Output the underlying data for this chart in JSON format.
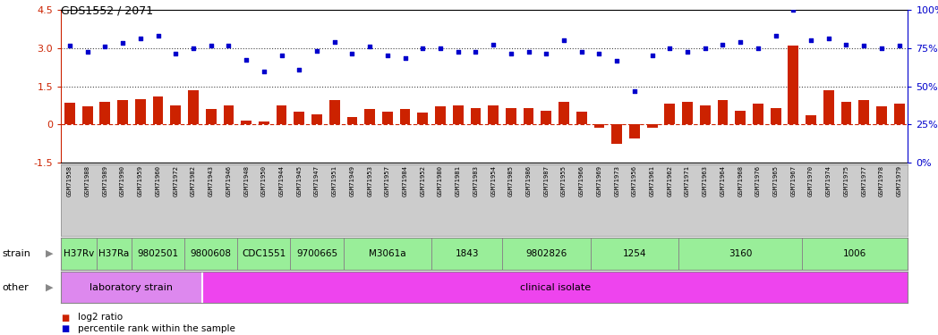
{
  "title": "GDS1552 / 2071",
  "samples": [
    "GSM71958",
    "GSM71988",
    "GSM71989",
    "GSM71990",
    "GSM71959",
    "GSM71960",
    "GSM71972",
    "GSM71982",
    "GSM71943",
    "GSM71946",
    "GSM71948",
    "GSM71950",
    "GSM71944",
    "GSM71945",
    "GSM71947",
    "GSM71951",
    "GSM71949",
    "GSM71953",
    "GSM71957",
    "GSM71984",
    "GSM71952",
    "GSM71980",
    "GSM71981",
    "GSM71983",
    "GSM71954",
    "GSM71985",
    "GSM71986",
    "GSM71987",
    "GSM71955",
    "GSM71966",
    "GSM71969",
    "GSM71973",
    "GSM71956",
    "GSM71961",
    "GSM71962",
    "GSM71971",
    "GSM71963",
    "GSM71964",
    "GSM71968",
    "GSM71976",
    "GSM71965",
    "GSM71967",
    "GSM71970",
    "GSM71974",
    "GSM71975",
    "GSM71977",
    "GSM71978",
    "GSM71979"
  ],
  "log2_ratio": [
    0.85,
    0.7,
    0.9,
    0.95,
    1.0,
    1.1,
    0.75,
    1.35,
    0.6,
    0.75,
    0.15,
    0.12,
    0.75,
    0.5,
    0.4,
    0.95,
    0.3,
    0.6,
    0.5,
    0.6,
    0.45,
    0.7,
    0.75,
    0.65,
    0.75,
    0.65,
    0.65,
    0.55,
    0.9,
    0.5,
    -0.12,
    -0.75,
    -0.55,
    -0.12,
    0.8,
    0.9,
    0.75,
    0.95,
    0.55,
    0.8,
    0.65,
    3.1,
    0.35,
    1.35,
    0.9,
    0.95,
    0.7,
    0.8
  ],
  "percentile_left": [
    3.1,
    2.85,
    3.05,
    3.2,
    3.4,
    3.5,
    2.8,
    3.0,
    3.1,
    3.1,
    2.55,
    2.1,
    2.7,
    2.15,
    2.9,
    3.25,
    2.8,
    3.05,
    2.7,
    2.6,
    3.0,
    3.0,
    2.85,
    2.85,
    3.15,
    2.8,
    2.85,
    2.8,
    3.3,
    2.85,
    2.8,
    2.5,
    1.3,
    2.7,
    3.0,
    2.85,
    3.0,
    3.15,
    3.25,
    3.0,
    3.5,
    4.5,
    3.3,
    3.4,
    3.15,
    3.1,
    3.0,
    3.1
  ],
  "strains": [
    {
      "label": "H37Rv",
      "start": 0,
      "end": 2
    },
    {
      "label": "H37Ra",
      "start": 2,
      "end": 4
    },
    {
      "label": "9802501",
      "start": 4,
      "end": 7
    },
    {
      "label": "9800608",
      "start": 7,
      "end": 10
    },
    {
      "label": "CDC1551",
      "start": 10,
      "end": 13
    },
    {
      "label": "9700665",
      "start": 13,
      "end": 16
    },
    {
      "label": "M3061a",
      "start": 16,
      "end": 21
    },
    {
      "label": "1843",
      "start": 21,
      "end": 25
    },
    {
      "label": "9802826",
      "start": 25,
      "end": 30
    },
    {
      "label": "1254",
      "start": 30,
      "end": 35
    },
    {
      "label": "3160",
      "start": 35,
      "end": 42
    },
    {
      "label": "1006",
      "start": 42,
      "end": 48
    }
  ],
  "other_rows": [
    {
      "label": "laboratory strain",
      "start": 0,
      "end": 8,
      "color": "#dd88ee"
    },
    {
      "label": "clinical isolate",
      "start": 8,
      "end": 48,
      "color": "#ee44ee"
    }
  ],
  "bar_color": "#cc2200",
  "dot_color": "#0000cc",
  "strain_color": "#99ee99",
  "xlabels_bg": "#cccccc",
  "ylim": [
    -1.5,
    4.5
  ],
  "left_yticks": [
    -1.5,
    0.0,
    1.5,
    3.0,
    4.5
  ],
  "left_yticklabels": [
    "-1.5",
    "0",
    "1.5",
    "3.0",
    "4.5"
  ],
  "right_yticks_pct": [
    0,
    25,
    50,
    75,
    100
  ],
  "dotted_lines": [
    1.5,
    3.0
  ],
  "n_samples": 48
}
